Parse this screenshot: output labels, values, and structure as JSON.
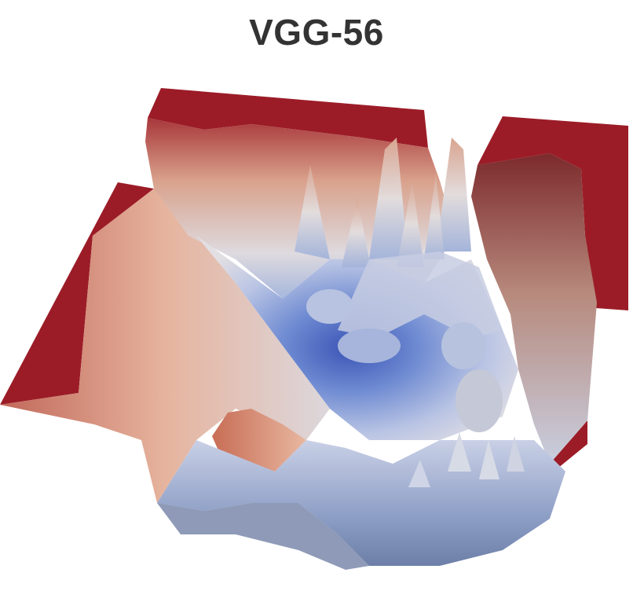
{
  "figure": {
    "title": "VGG-56",
    "colors": {
      "high": "#9b1c27",
      "warm": "#d98a6a",
      "mid": "#e4e0e2",
      "cool": "#7f97cf",
      "low": "#3b4fa6"
    }
  }
}
